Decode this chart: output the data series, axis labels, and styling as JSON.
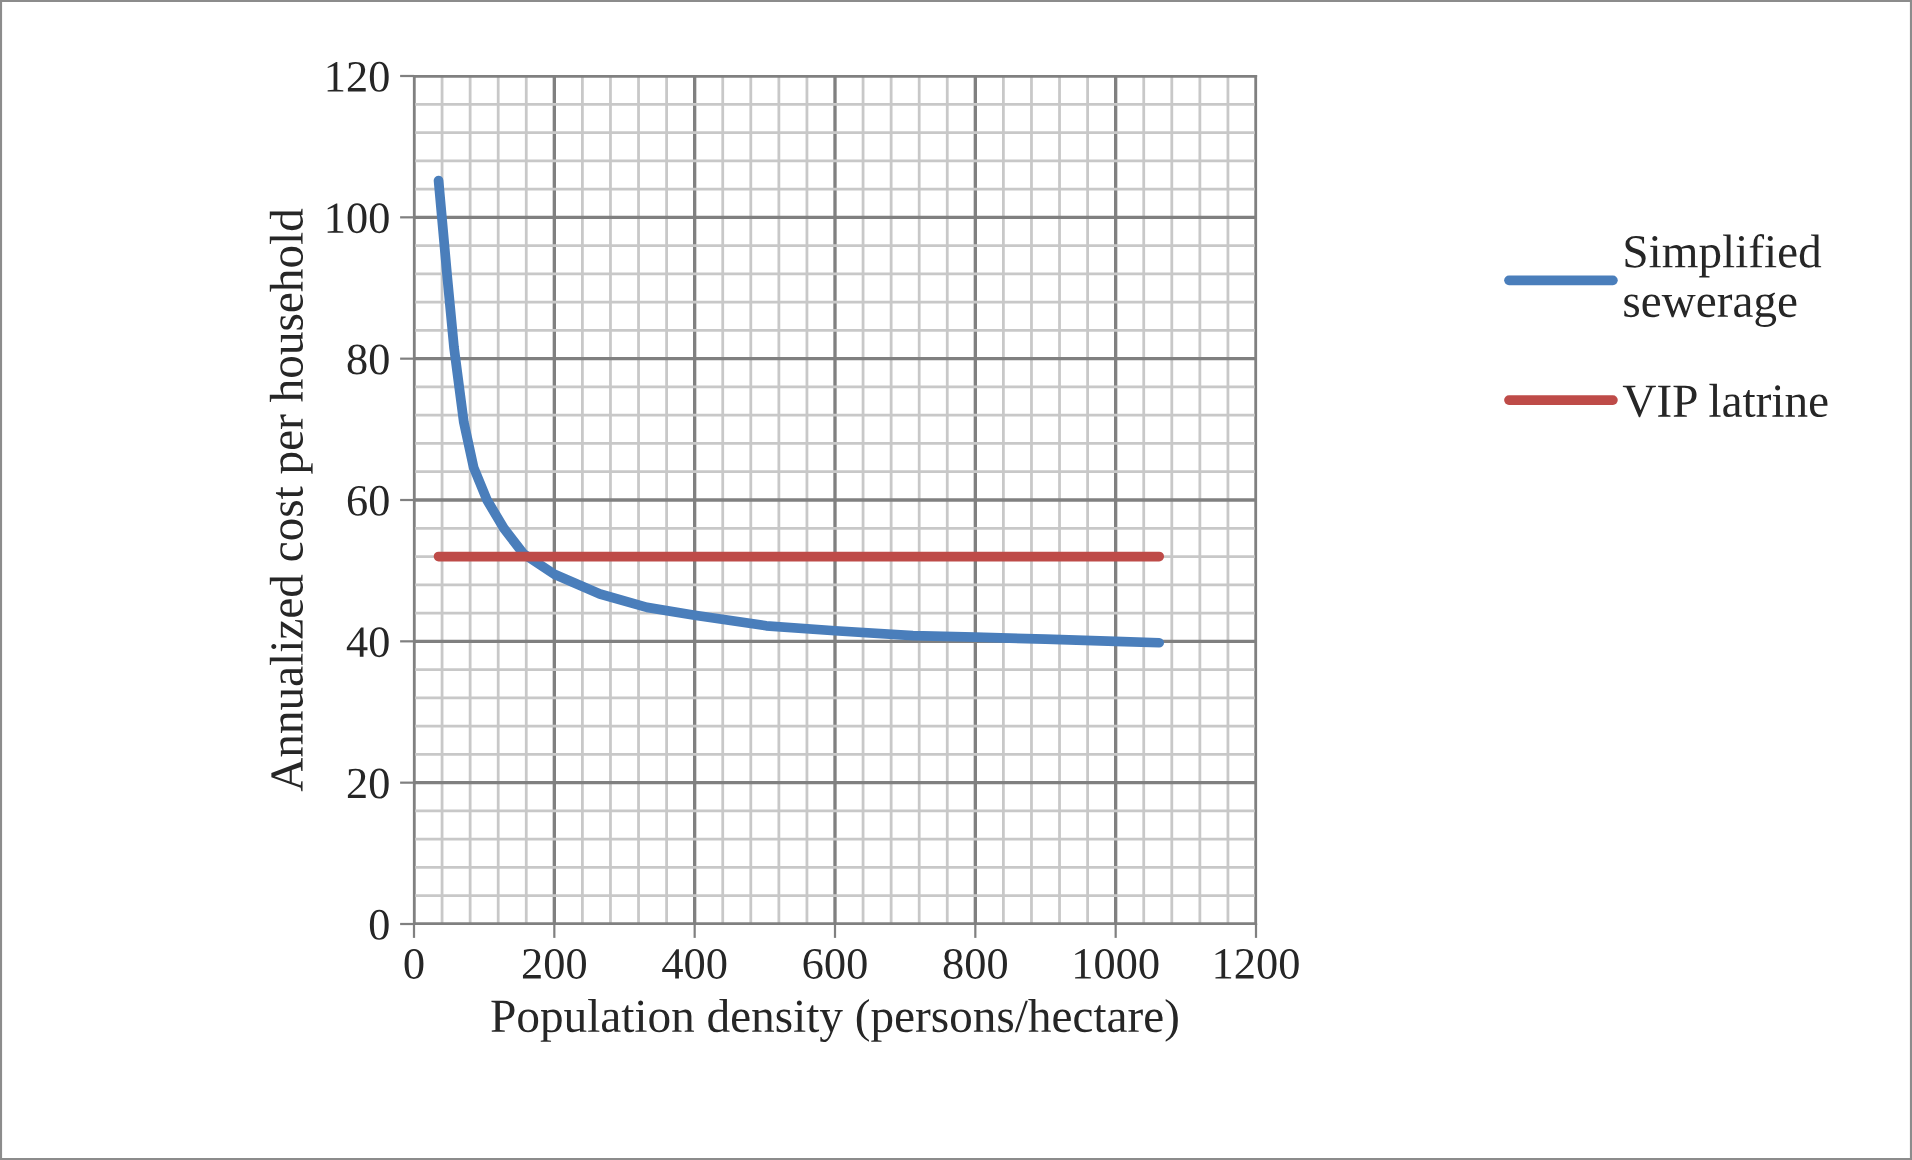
{
  "chart_data": {
    "type": "line",
    "xlabel": "Population density (persons/hectare)",
    "ylabel": "Annualized cost per household",
    "xlim": [
      0,
      1200
    ],
    "xticks": [
      0,
      200,
      400,
      600,
      800,
      1000,
      1200
    ],
    "ylim": [
      0,
      120
    ],
    "yticks": [
      0,
      20,
      40,
      60,
      80,
      100,
      120
    ],
    "grid": true,
    "legend": "right",
    "marker": "none",
    "line_style": "solid",
    "series": [
      {
        "name": "Simplified sewerage",
        "color": "#4a7ebb",
        "x": [
          35,
          47,
          57,
          71,
          85,
          104,
          128,
          156,
          200,
          265,
          332,
          400,
          502,
          600,
          711,
          800,
          900,
          1000,
          1062
        ],
        "values": [
          105.2,
          92,
          81.6,
          71,
          64.6,
          60,
          56,
          52.4,
          49.5,
          46.7,
          44.8,
          43.7,
          42.2,
          41.5,
          40.8,
          40.6,
          40.3,
          40,
          39.8
        ]
      },
      {
        "name": "VIP latrine",
        "color": "#be4b48",
        "x": [
          35,
          1062
        ],
        "values": [
          52,
          52
        ]
      }
    ]
  }
}
